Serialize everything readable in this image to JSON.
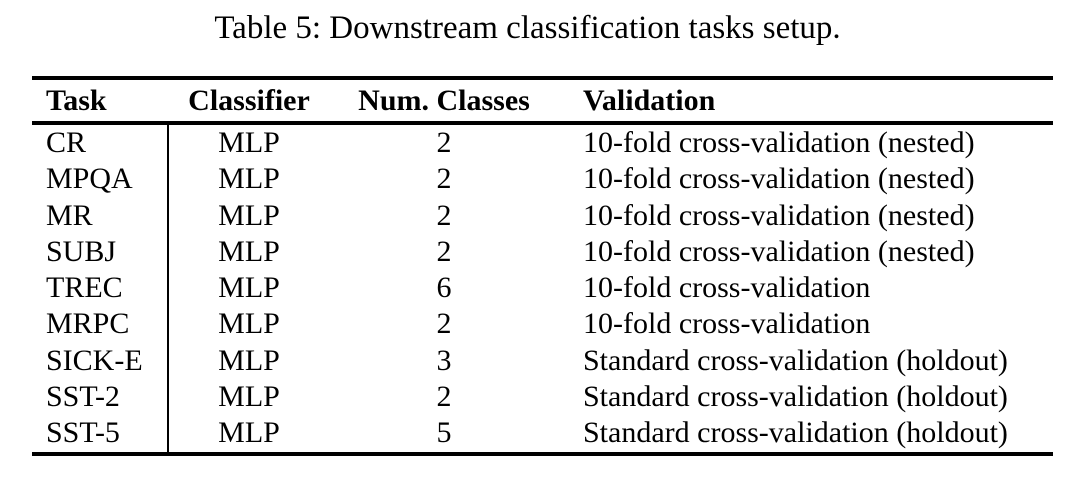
{
  "caption": "Table 5: Downstream classification tasks setup.",
  "colors": {
    "text": "#000000",
    "rules": "#000000",
    "background": "#ffffff"
  },
  "table": {
    "headers": {
      "task": "Task",
      "classifier": "Classifier",
      "num_classes": "Num. Classes",
      "validation": "Validation"
    },
    "rows": [
      {
        "task": "CR",
        "classifier": "MLP",
        "num_classes": "2",
        "validation": "10-fold cross-validation (nested)"
      },
      {
        "task": "MPQA",
        "classifier": "MLP",
        "num_classes": "2",
        "validation": "10-fold cross-validation (nested)"
      },
      {
        "task": "MR",
        "classifier": "MLP",
        "num_classes": "2",
        "validation": "10-fold cross-validation (nested)"
      },
      {
        "task": "SUBJ",
        "classifier": "MLP",
        "num_classes": "2",
        "validation": "10-fold cross-validation (nested)"
      },
      {
        "task": "TREC",
        "classifier": "MLP",
        "num_classes": "6",
        "validation": "10-fold cross-validation"
      },
      {
        "task": "MRPC",
        "classifier": "MLP",
        "num_classes": "2",
        "validation": "10-fold cross-validation"
      },
      {
        "task": "SICK-E",
        "classifier": "MLP",
        "num_classes": "3",
        "validation": "Standard cross-validation (holdout)"
      },
      {
        "task": "SST-2",
        "classifier": "MLP",
        "num_classes": "2",
        "validation": "Standard cross-validation (holdout)"
      },
      {
        "task": "SST-5",
        "classifier": "MLP",
        "num_classes": "5",
        "validation": "Standard cross-validation (holdout)"
      }
    ]
  }
}
